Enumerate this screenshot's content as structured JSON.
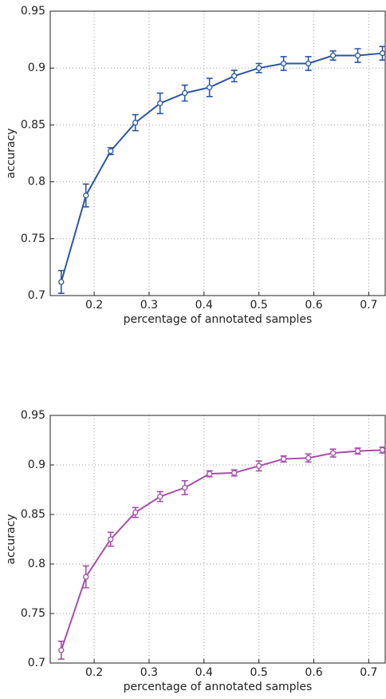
{
  "chart_data": [
    {
      "type": "line",
      "xlabel": "percentage of annotated samples",
      "ylabel": "accuracy",
      "x": [
        0.14,
        0.185,
        0.23,
        0.275,
        0.32,
        0.365,
        0.41,
        0.455,
        0.5,
        0.545,
        0.59,
        0.635,
        0.68,
        0.725
      ],
      "series": [
        {
          "color": "#2a56a6",
          "values": [
            0.712,
            0.788,
            0.827,
            0.852,
            0.869,
            0.878,
            0.883,
            0.893,
            0.9,
            0.904,
            0.904,
            0.911,
            0.911,
            0.913
          ],
          "errors": [
            0.01,
            0.01,
            0.003,
            0.007,
            0.009,
            0.007,
            0.008,
            0.005,
            0.004,
            0.006,
            0.006,
            0.004,
            0.006,
            0.006
          ]
        }
      ],
      "xlim": [
        0.12,
        0.73
      ],
      "ylim": [
        0.7,
        0.95
      ],
      "xticks": [
        0.2,
        0.3,
        0.4,
        0.5,
        0.6,
        0.7
      ],
      "yticks": [
        0.7,
        0.75,
        0.8,
        0.85,
        0.9,
        0.95
      ],
      "grid": true
    },
    {
      "type": "line",
      "xlabel": "percentage of annotated samples",
      "ylabel": "accuracy",
      "x": [
        0.14,
        0.185,
        0.23,
        0.275,
        0.32,
        0.365,
        0.41,
        0.455,
        0.5,
        0.545,
        0.59,
        0.635,
        0.68,
        0.725
      ],
      "series": [
        {
          "color": "#a64fab",
          "values": [
            0.713,
            0.787,
            0.825,
            0.852,
            0.868,
            0.877,
            0.891,
            0.892,
            0.899,
            0.906,
            0.907,
            0.912,
            0.914,
            0.915
          ],
          "errors": [
            0.009,
            0.011,
            0.007,
            0.005,
            0.005,
            0.007,
            0.003,
            0.003,
            0.005,
            0.003,
            0.004,
            0.004,
            0.003,
            0.003
          ]
        }
      ],
      "xlim": [
        0.12,
        0.73
      ],
      "ylim": [
        0.7,
        0.95
      ],
      "xticks": [
        0.2,
        0.3,
        0.4,
        0.5,
        0.6,
        0.7
      ],
      "yticks": [
        0.7,
        0.75,
        0.8,
        0.85,
        0.9,
        0.95
      ],
      "grid": true
    }
  ]
}
